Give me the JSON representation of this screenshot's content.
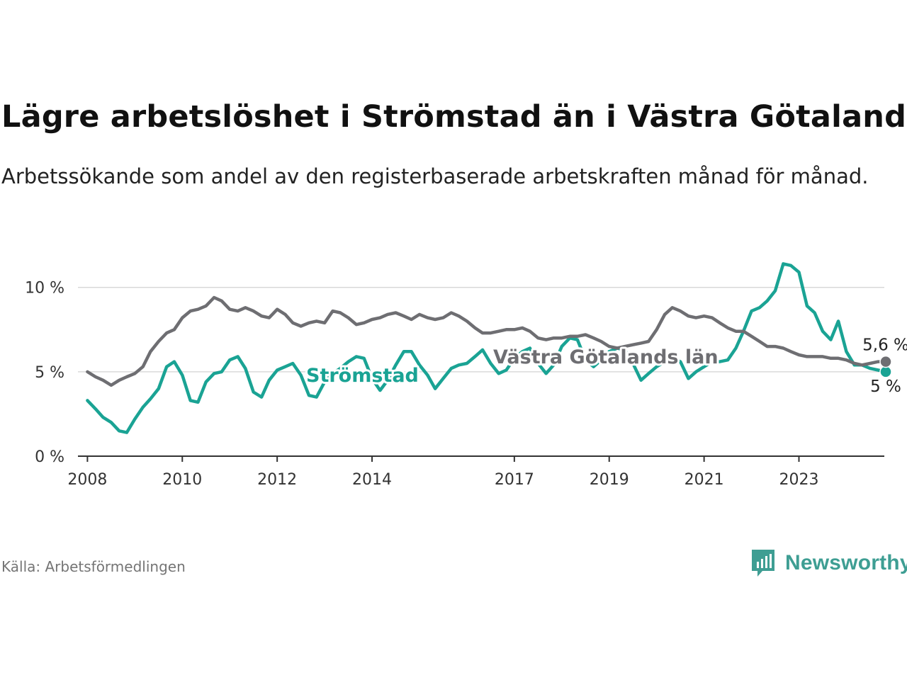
{
  "title": "Lägre arbetslöshet i Strömstad än i Västra Götaland",
  "subtitle": "Arbetssökande som andel av den registerbaserade arbetskraften månad för månad.",
  "source": "Källa: Arbetsförmedlingen",
  "brand": "Newsworthy",
  "colors": {
    "stromstad": "#1aa394",
    "vastra_gotaland": "#6e6e72",
    "grid": "#d9d9d9",
    "axis": "#333333",
    "brand": "#3e9e93"
  },
  "chart_data": {
    "type": "line",
    "x_unit": "year (decimal)",
    "xlim": [
      2007.8,
      2024.8
    ],
    "ylim": [
      0,
      11.5
    ],
    "y_ticks": [
      0,
      5,
      10
    ],
    "y_tick_labels": [
      "0 %",
      "5 %",
      "10 %"
    ],
    "x_ticks": [
      2008,
      2010,
      2012,
      2014,
      2017,
      2019,
      2021,
      2023
    ],
    "x_tick_labels": [
      "2008",
      "2010",
      "2012",
      "2014",
      "2017",
      "2019",
      "2021",
      "2023"
    ],
    "grid": "horizontal",
    "series": [
      {
        "name": "Strömstad",
        "label": "Strömstad",
        "end_label": "5 %",
        "points": [
          [
            2008.0,
            3.3
          ],
          [
            2008.17,
            2.8
          ],
          [
            2008.33,
            2.3
          ],
          [
            2008.5,
            2.0
          ],
          [
            2008.67,
            1.5
          ],
          [
            2008.83,
            1.4
          ],
          [
            2009.0,
            2.2
          ],
          [
            2009.17,
            2.9
          ],
          [
            2009.33,
            3.4
          ],
          [
            2009.5,
            4.0
          ],
          [
            2009.67,
            5.3
          ],
          [
            2009.83,
            5.6
          ],
          [
            2010.0,
            4.8
          ],
          [
            2010.17,
            3.3
          ],
          [
            2010.33,
            3.2
          ],
          [
            2010.5,
            4.4
          ],
          [
            2010.67,
            4.9
          ],
          [
            2010.83,
            5.0
          ],
          [
            2011.0,
            5.7
          ],
          [
            2011.17,
            5.9
          ],
          [
            2011.33,
            5.2
          ],
          [
            2011.5,
            3.8
          ],
          [
            2011.67,
            3.5
          ],
          [
            2011.83,
            4.5
          ],
          [
            2012.0,
            5.1
          ],
          [
            2012.17,
            5.3
          ],
          [
            2012.33,
            5.5
          ],
          [
            2012.5,
            4.8
          ],
          [
            2012.67,
            3.6
          ],
          [
            2012.83,
            3.5
          ],
          [
            2013.0,
            4.4
          ],
          [
            2013.17,
            4.9
          ],
          [
            2013.33,
            5.2
          ],
          [
            2013.5,
            5.6
          ],
          [
            2013.67,
            5.9
          ],
          [
            2013.83,
            5.8
          ],
          [
            2014.0,
            4.6
          ],
          [
            2014.17,
            3.9
          ],
          [
            2014.33,
            4.5
          ],
          [
            2014.5,
            5.4
          ],
          [
            2014.67,
            6.2
          ],
          [
            2014.83,
            6.2
          ],
          [
            2015.0,
            5.4
          ],
          [
            2015.17,
            4.8
          ],
          [
            2015.33,
            4.0
          ],
          [
            2015.5,
            4.6
          ],
          [
            2015.67,
            5.2
          ],
          [
            2015.83,
            5.4
          ],
          [
            2016.0,
            5.5
          ],
          [
            2016.17,
            5.9
          ],
          [
            2016.33,
            6.3
          ],
          [
            2016.5,
            5.5
          ],
          [
            2016.67,
            4.9
          ],
          [
            2016.83,
            5.1
          ],
          [
            2017.0,
            5.8
          ],
          [
            2017.17,
            6.2
          ],
          [
            2017.33,
            6.4
          ],
          [
            2017.5,
            5.5
          ],
          [
            2017.67,
            4.9
          ],
          [
            2017.83,
            5.4
          ],
          [
            2018.0,
            6.5
          ],
          [
            2018.17,
            7.0
          ],
          [
            2018.33,
            6.9
          ],
          [
            2018.5,
            5.7
          ],
          [
            2018.67,
            5.3
          ],
          [
            2018.83,
            5.7
          ],
          [
            2019.0,
            6.2
          ],
          [
            2019.17,
            6.4
          ],
          [
            2019.33,
            6.3
          ],
          [
            2019.5,
            5.5
          ],
          [
            2019.67,
            4.5
          ],
          [
            2019.83,
            4.9
          ],
          [
            2020.0,
            5.3
          ],
          [
            2020.17,
            5.6
          ],
          [
            2020.33,
            5.8
          ],
          [
            2020.5,
            5.6
          ],
          [
            2020.67,
            4.6
          ],
          [
            2020.83,
            5.0
          ],
          [
            2021.0,
            5.3
          ],
          [
            2021.17,
            5.6
          ],
          [
            2021.33,
            5.6
          ],
          [
            2021.5,
            5.7
          ],
          [
            2021.67,
            6.4
          ],
          [
            2021.83,
            7.4
          ],
          [
            2022.0,
            8.6
          ],
          [
            2022.17,
            8.8
          ],
          [
            2022.33,
            9.2
          ],
          [
            2022.5,
            9.8
          ],
          [
            2022.67,
            11.4
          ],
          [
            2022.83,
            11.3
          ],
          [
            2023.0,
            10.9
          ],
          [
            2023.17,
            8.9
          ],
          [
            2023.33,
            8.5
          ],
          [
            2023.5,
            7.4
          ],
          [
            2023.67,
            6.9
          ],
          [
            2023.83,
            8.0
          ],
          [
            2024.0,
            6.2
          ],
          [
            2024.17,
            5.4
          ],
          [
            2024.33,
            5.4
          ],
          [
            2024.5,
            5.2
          ],
          [
            2024.67,
            5.1
          ],
          [
            2024.83,
            5.0
          ]
        ]
      },
      {
        "name": "Västra Götalands län",
        "label": "Västra Götalands län",
        "end_label": "5,6 %",
        "points": [
          [
            2008.0,
            5.0
          ],
          [
            2008.17,
            4.7
          ],
          [
            2008.33,
            4.5
          ],
          [
            2008.5,
            4.2
          ],
          [
            2008.67,
            4.5
          ],
          [
            2008.83,
            4.7
          ],
          [
            2009.0,
            4.9
          ],
          [
            2009.17,
            5.3
          ],
          [
            2009.33,
            6.2
          ],
          [
            2009.5,
            6.8
          ],
          [
            2009.67,
            7.3
          ],
          [
            2009.83,
            7.5
          ],
          [
            2010.0,
            8.2
          ],
          [
            2010.17,
            8.6
          ],
          [
            2010.33,
            8.7
          ],
          [
            2010.5,
            8.9
          ],
          [
            2010.67,
            9.4
          ],
          [
            2010.83,
            9.2
          ],
          [
            2011.0,
            8.7
          ],
          [
            2011.17,
            8.6
          ],
          [
            2011.33,
            8.8
          ],
          [
            2011.5,
            8.6
          ],
          [
            2011.67,
            8.3
          ],
          [
            2011.83,
            8.2
          ],
          [
            2012.0,
            8.7
          ],
          [
            2012.17,
            8.4
          ],
          [
            2012.33,
            7.9
          ],
          [
            2012.5,
            7.7
          ],
          [
            2012.67,
            7.9
          ],
          [
            2012.83,
            8.0
          ],
          [
            2013.0,
            7.9
          ],
          [
            2013.17,
            8.6
          ],
          [
            2013.33,
            8.5
          ],
          [
            2013.5,
            8.2
          ],
          [
            2013.67,
            7.8
          ],
          [
            2013.83,
            7.9
          ],
          [
            2014.0,
            8.1
          ],
          [
            2014.17,
            8.2
          ],
          [
            2014.33,
            8.4
          ],
          [
            2014.5,
            8.5
          ],
          [
            2014.67,
            8.3
          ],
          [
            2014.83,
            8.1
          ],
          [
            2015.0,
            8.4
          ],
          [
            2015.17,
            8.2
          ],
          [
            2015.33,
            8.1
          ],
          [
            2015.5,
            8.2
          ],
          [
            2015.67,
            8.5
          ],
          [
            2015.83,
            8.3
          ],
          [
            2016.0,
            8.0
          ],
          [
            2016.17,
            7.6
          ],
          [
            2016.33,
            7.3
          ],
          [
            2016.5,
            7.3
          ],
          [
            2016.67,
            7.4
          ],
          [
            2016.83,
            7.5
          ],
          [
            2017.0,
            7.5
          ],
          [
            2017.17,
            7.6
          ],
          [
            2017.33,
            7.4
          ],
          [
            2017.5,
            7.0
          ],
          [
            2017.67,
            6.9
          ],
          [
            2017.83,
            7.0
          ],
          [
            2018.0,
            7.0
          ],
          [
            2018.17,
            7.1
          ],
          [
            2018.33,
            7.1
          ],
          [
            2018.5,
            7.2
          ],
          [
            2018.67,
            7.0
          ],
          [
            2018.83,
            6.8
          ],
          [
            2019.0,
            6.5
          ],
          [
            2019.17,
            6.4
          ],
          [
            2019.33,
            6.5
          ],
          [
            2019.5,
            6.6
          ],
          [
            2019.67,
            6.7
          ],
          [
            2019.83,
            6.8
          ],
          [
            2020.0,
            7.5
          ],
          [
            2020.17,
            8.4
          ],
          [
            2020.33,
            8.8
          ],
          [
            2020.5,
            8.6
          ],
          [
            2020.67,
            8.3
          ],
          [
            2020.83,
            8.2
          ],
          [
            2021.0,
            8.3
          ],
          [
            2021.17,
            8.2
          ],
          [
            2021.33,
            7.9
          ],
          [
            2021.5,
            7.6
          ],
          [
            2021.67,
            7.4
          ],
          [
            2021.83,
            7.4
          ],
          [
            2022.0,
            7.1
          ],
          [
            2022.17,
            6.8
          ],
          [
            2022.33,
            6.5
          ],
          [
            2022.5,
            6.5
          ],
          [
            2022.67,
            6.4
          ],
          [
            2022.83,
            6.2
          ],
          [
            2023.0,
            6.0
          ],
          [
            2023.17,
            5.9
          ],
          [
            2023.33,
            5.9
          ],
          [
            2023.5,
            5.9
          ],
          [
            2023.67,
            5.8
          ],
          [
            2023.83,
            5.8
          ],
          [
            2024.0,
            5.7
          ],
          [
            2024.17,
            5.5
          ],
          [
            2024.33,
            5.4
          ],
          [
            2024.5,
            5.5
          ],
          [
            2024.67,
            5.6
          ],
          [
            2024.83,
            5.6
          ]
        ]
      }
    ]
  }
}
